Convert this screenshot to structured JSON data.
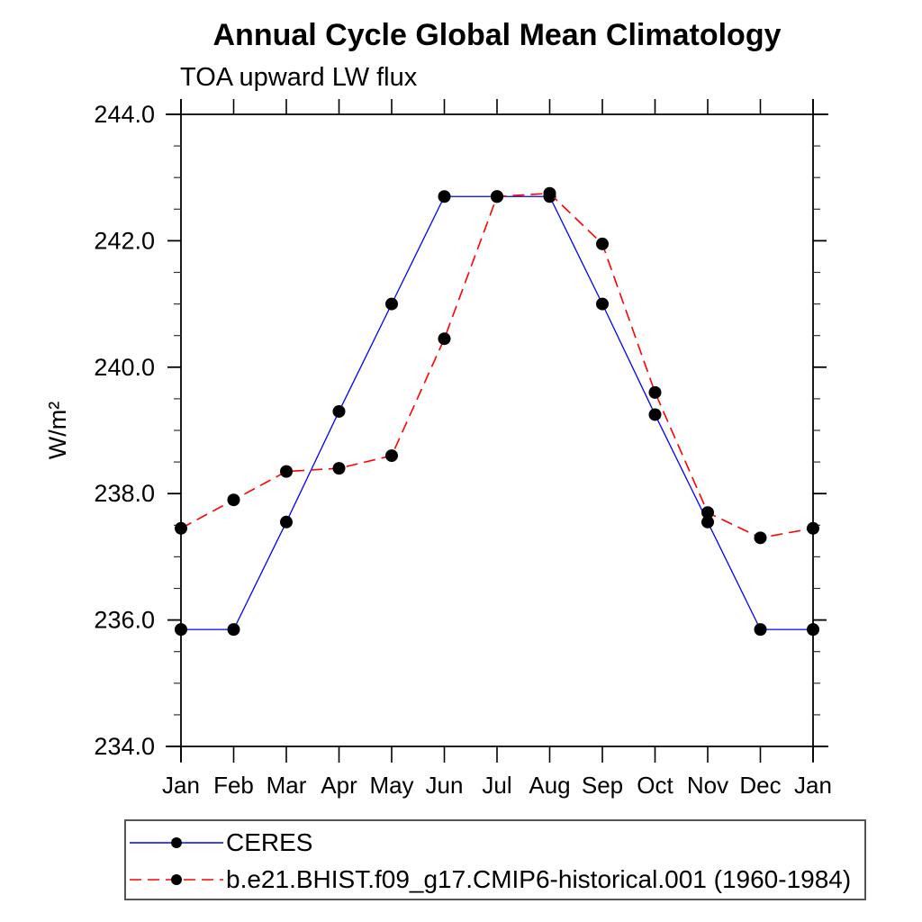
{
  "page": {
    "background": "#ffffff"
  },
  "chart_data": {
    "type": "line",
    "title": "Annual Cycle Global Mean Climatology",
    "subtitle": "TOA upward LW flux",
    "ylabel": "W/m²",
    "xlabel": "",
    "categories": [
      "Jan",
      "Feb",
      "Mar",
      "Apr",
      "May",
      "Jun",
      "Jul",
      "Aug",
      "Sep",
      "Oct",
      "Nov",
      "Dec",
      "Jan"
    ],
    "ylim": [
      234.0,
      244.0
    ],
    "yticks": [
      234.0,
      236.0,
      238.0,
      240.0,
      242.0,
      244.0
    ],
    "ytick_labels": [
      "234.0",
      "236.0",
      "238.0",
      "240.0",
      "242.0",
      "244.0"
    ],
    "y_minor_tick_step": 0.5,
    "grid": false,
    "legend_position": "bottom-left",
    "axis_color": "#000000",
    "marker_color": "#000000",
    "series": [
      {
        "name": "CERES",
        "color": "#0000ff",
        "style": "solid",
        "marker": "circle",
        "values": [
          235.85,
          235.85,
          237.55,
          239.3,
          241.0,
          242.7,
          242.7,
          242.7,
          241.0,
          239.25,
          237.55,
          235.85,
          235.85
        ]
      },
      {
        "name": "b.e21.BHIST.f09_g17.CMIP6-historical.001 (1960-1984)",
        "color": "#ff0000",
        "style": "dashed",
        "marker": "circle",
        "values": [
          237.45,
          237.9,
          238.35,
          238.4,
          238.6,
          240.45,
          242.7,
          242.75,
          241.95,
          239.6,
          237.7,
          237.3,
          237.45
        ]
      }
    ]
  }
}
